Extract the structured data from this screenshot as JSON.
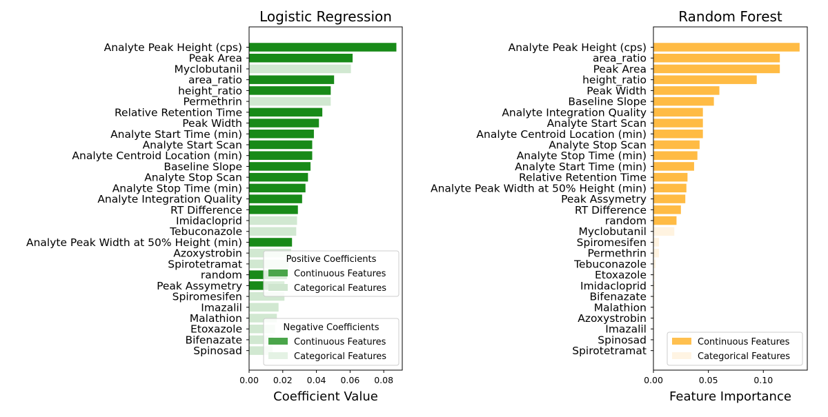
{
  "colors": {
    "continuous_lr": "#188a18",
    "categorical_lr": "#d1e8d1",
    "continuous_rf": "#ffbb44",
    "categorical_rf": "#fff3e0",
    "legend_cont_lr": "#4aa54a",
    "legend_cat_pos": "#cfe6cf",
    "legend_cat_neg": "#e4f2e4",
    "legend_cont_rf": "#ffc04f",
    "legend_cat_rf": "#fff4e3"
  },
  "chart_data": [
    {
      "type": "bar",
      "orientation": "horizontal",
      "title": "Logistic Regression",
      "xlabel": "Coefficient Value",
      "xlim": [
        0,
        0.091
      ],
      "xticks": [
        0.0,
        0.02,
        0.04,
        0.06,
        0.08
      ],
      "xtick_labels": [
        "0.00",
        "0.02",
        "0.04",
        "0.06",
        "0.08"
      ],
      "categories": [
        "Analyte Peak Height (cps)",
        "Peak Area",
        "Myclobutanil",
        "area_ratio",
        "height_ratio",
        "Permethrin",
        "Relative Retention Time",
        "Peak Width",
        "Analyte Start Time (min)",
        "Analyte Start Scan",
        "Analyte Centroid Location (min)",
        "Baseline Slope",
        "Analyte Stop Scan",
        "Analyte Stop Time (min)",
        "Analyte Integration Quality",
        "RT Difference",
        "Imidacloprid",
        "Tebuconazole",
        "Analyte Peak Width at 50% Height (min)",
        "Azoxystrobin",
        "Spirotetramat",
        "random",
        "Peak Assymetry",
        "Spiromesifen",
        "Imazalil",
        "Malathion",
        "Etoxazole",
        "Bifenazate",
        "Spinosad"
      ],
      "values": [
        0.0875,
        0.0615,
        0.0605,
        0.0505,
        0.0485,
        0.0485,
        0.0435,
        0.0415,
        0.0385,
        0.0375,
        0.0375,
        0.0365,
        0.035,
        0.0335,
        0.0315,
        0.029,
        0.0285,
        0.028,
        0.0255,
        0.025,
        0.0235,
        0.0225,
        0.021,
        0.021,
        0.0175,
        0.0165,
        0.0155,
        0.0145,
        0.014
      ],
      "feature_type": [
        "continuous",
        "continuous",
        "categorical",
        "continuous",
        "continuous",
        "categorical",
        "continuous",
        "continuous",
        "continuous",
        "continuous",
        "continuous",
        "continuous",
        "continuous",
        "continuous",
        "continuous",
        "continuous",
        "categorical",
        "categorical",
        "continuous",
        "categorical",
        "categorical",
        "continuous",
        "continuous",
        "categorical",
        "categorical",
        "categorical",
        "categorical",
        "categorical",
        "categorical"
      ],
      "legends": [
        {
          "title": "Positive Coefficients",
          "entries": [
            "Continuous Features",
            "Categorical Features"
          ],
          "placement": "lower-right"
        },
        {
          "title": "Negative Coefficients",
          "entries": [
            "Continuous Features",
            "Categorical Features"
          ],
          "placement": "lower-right"
        }
      ]
    },
    {
      "type": "bar",
      "orientation": "horizontal",
      "title": "Random Forest",
      "xlabel": "Feature Importance",
      "xlim": [
        0,
        0.14
      ],
      "xticks": [
        0.0,
        0.05,
        0.1
      ],
      "xtick_labels": [
        "0.00",
        "0.05",
        "0.10"
      ],
      "categories": [
        "Analyte Peak Height (cps)",
        "area_ratio",
        "Peak Area",
        "height_ratio",
        "Peak Width",
        "Baseline Slope",
        "Analyte Integration Quality",
        "Analyte Start Scan",
        "Analyte Centroid Location (min)",
        "Analyte Stop Scan",
        "Analyte Stop Time (min)",
        "Analyte Start Time (min)",
        "Relative Retention Time",
        "Analyte Peak Width at 50% Height (min)",
        "Peak Assymetry",
        "RT Difference",
        "random",
        "Myclobutanil",
        "Spiromesifen",
        "Permethrin",
        "Tebuconazole",
        "Etoxazole",
        "Imidacloprid",
        "Bifenazate",
        "Malathion",
        "Azoxystrobin",
        "Imazalil",
        "Spinosad",
        "Spirotetramat"
      ],
      "values": [
        0.133,
        0.115,
        0.115,
        0.094,
        0.06,
        0.055,
        0.045,
        0.045,
        0.045,
        0.042,
        0.04,
        0.037,
        0.031,
        0.03,
        0.029,
        0.025,
        0.021,
        0.019,
        0.005,
        0.005,
        0.002,
        0.001,
        0.001,
        0.0007,
        0.0005,
        0.0005,
        0.0004,
        0.0003,
        0.0002
      ],
      "feature_type": [
        "continuous",
        "continuous",
        "continuous",
        "continuous",
        "continuous",
        "continuous",
        "continuous",
        "continuous",
        "continuous",
        "continuous",
        "continuous",
        "continuous",
        "continuous",
        "continuous",
        "continuous",
        "continuous",
        "continuous",
        "categorical",
        "categorical",
        "categorical",
        "categorical",
        "categorical",
        "categorical",
        "categorical",
        "categorical",
        "categorical",
        "categorical",
        "categorical",
        "categorical"
      ],
      "legends": [
        {
          "title": "",
          "entries": [
            "Continuous Features",
            "Categorical Features"
          ],
          "placement": "lower-right"
        }
      ]
    }
  ]
}
